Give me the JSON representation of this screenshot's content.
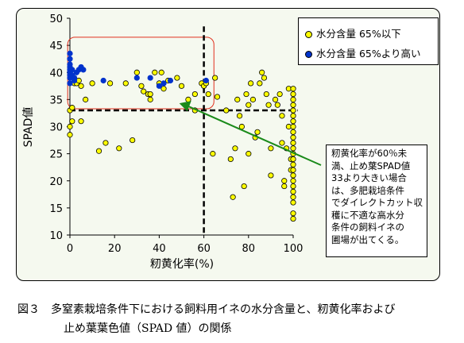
{
  "chart_data": {
    "type": "scatter",
    "xlabel": "籾黄化率(%)",
    "ylabel": "SPAD値",
    "xlim": [
      0,
      100
    ],
    "ylim": [
      10,
      50
    ],
    "xticks": [
      "0",
      "20",
      "40",
      "60",
      "80",
      "100"
    ],
    "yticks": [
      "10",
      "15",
      "20",
      "25",
      "30",
      "35",
      "40",
      "45",
      "50"
    ],
    "grid": false,
    "legend_position": "top-right",
    "series": [
      {
        "name": "水分含量 65%以下",
        "color": "#ffff00",
        "points": [
          [
            0,
            33
          ],
          [
            0,
            30
          ],
          [
            0,
            28.5
          ],
          [
            1,
            31
          ],
          [
            1,
            33.5
          ],
          [
            2,
            38
          ],
          [
            3,
            38
          ],
          [
            4,
            38.5
          ],
          [
            5,
            37.5
          ],
          [
            5,
            31
          ],
          [
            7,
            35
          ],
          [
            10,
            38
          ],
          [
            13,
            25.5
          ],
          [
            16,
            27
          ],
          [
            18,
            38
          ],
          [
            22,
            26
          ],
          [
            25,
            38
          ],
          [
            28,
            27.5
          ],
          [
            30,
            40
          ],
          [
            32,
            37.5
          ],
          [
            33,
            36.5
          ],
          [
            35,
            36
          ],
          [
            36,
            36
          ],
          [
            36,
            35
          ],
          [
            38,
            40
          ],
          [
            40,
            38
          ],
          [
            41,
            40
          ],
          [
            42,
            37
          ],
          [
            44,
            38.5
          ],
          [
            48,
            39
          ],
          [
            50,
            37.5
          ],
          [
            53,
            35
          ],
          [
            56,
            33
          ],
          [
            56,
            36
          ],
          [
            59,
            38
          ],
          [
            60,
            37.5
          ],
          [
            61,
            38
          ],
          [
            62,
            36
          ],
          [
            64,
            25
          ],
          [
            65,
            39
          ],
          [
            66,
            35.5
          ],
          [
            70,
            33
          ],
          [
            72,
            24
          ],
          [
            73,
            17
          ],
          [
            74,
            26
          ],
          [
            75,
            35
          ],
          [
            76,
            32
          ],
          [
            77,
            30
          ],
          [
            78,
            19
          ],
          [
            79,
            36
          ],
          [
            80,
            25
          ],
          [
            80,
            34
          ],
          [
            81,
            38
          ],
          [
            82,
            35
          ],
          [
            83,
            28
          ],
          [
            84,
            29
          ],
          [
            85,
            38
          ],
          [
            86,
            40
          ],
          [
            87,
            39
          ],
          [
            88,
            36
          ],
          [
            89,
            34
          ],
          [
            90,
            26
          ],
          [
            90,
            21
          ],
          [
            92,
            35
          ],
          [
            93,
            34
          ],
          [
            94,
            36
          ],
          [
            95,
            32
          ],
          [
            95,
            27
          ],
          [
            96,
            19
          ],
          [
            96,
            20
          ],
          [
            97,
            26
          ],
          [
            98,
            37
          ],
          [
            98,
            30
          ],
          [
            99,
            24
          ],
          [
            99,
            22
          ],
          [
            100,
            37
          ],
          [
            100,
            36
          ],
          [
            100,
            35
          ],
          [
            100,
            34
          ],
          [
            100,
            33
          ],
          [
            100,
            32
          ],
          [
            100,
            31
          ],
          [
            100,
            30
          ],
          [
            100,
            29
          ],
          [
            100,
            28
          ],
          [
            100,
            27
          ],
          [
            100,
            26
          ],
          [
            100,
            25
          ],
          [
            100,
            24
          ],
          [
            100,
            23
          ],
          [
            100,
            22
          ],
          [
            100,
            21
          ],
          [
            100,
            20
          ],
          [
            100,
            19
          ],
          [
            100,
            18
          ],
          [
            100,
            17
          ],
          [
            100,
            16
          ],
          [
            100,
            14
          ],
          [
            100,
            13
          ]
        ]
      },
      {
        "name": "水分含量 65%より高い",
        "color": "#0033cc",
        "points": [
          [
            0,
            43.5
          ],
          [
            0,
            42.5
          ],
          [
            0,
            41.5
          ],
          [
            0,
            41
          ],
          [
            0,
            40.5
          ],
          [
            0,
            40
          ],
          [
            0,
            39.5
          ],
          [
            0,
            39
          ],
          [
            0,
            38
          ],
          [
            1,
            40.5
          ],
          [
            1,
            39.5
          ],
          [
            2,
            39
          ],
          [
            2,
            38.5
          ],
          [
            3,
            40
          ],
          [
            4,
            40.5
          ],
          [
            5,
            41
          ],
          [
            6,
            40.5
          ],
          [
            15,
            38.5
          ],
          [
            30,
            39
          ],
          [
            36,
            39
          ],
          [
            40,
            37.5
          ],
          [
            42,
            38
          ],
          [
            45,
            38.5
          ],
          [
            61,
            38.5
          ]
        ]
      }
    ],
    "annotation": "籾黄化率が60％未\n満、止め葉SPAD値\n33より大きい場合\nは、多肥栽培条件\nでダイレクトカット収\n穫に不適な高水分\n条件の飼料イネの\n圃場が出てくる。",
    "reference_lines": {
      "x": 60,
      "y": 33
    }
  },
  "caption": {
    "line1": "図３　多窒素栽培条件下における飼料用イネの水分含量と、籾黄化率および",
    "line2": "止め葉葉色値（SPAD 値）の関係"
  }
}
